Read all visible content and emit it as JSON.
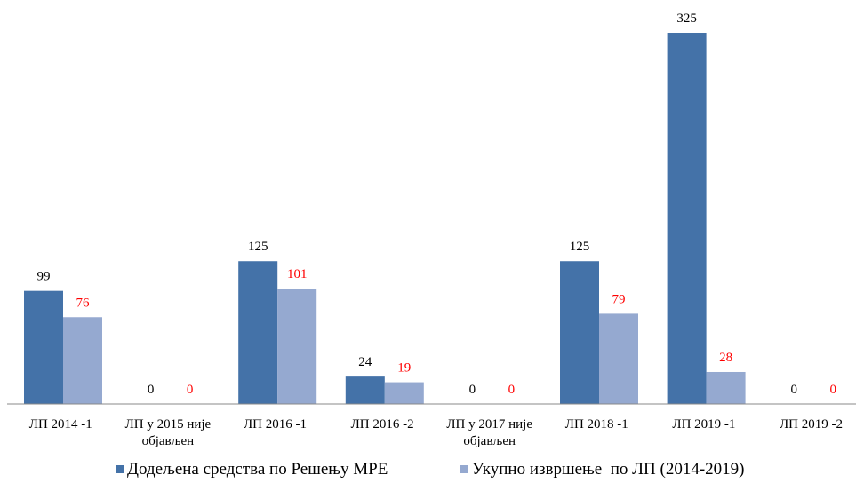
{
  "chart_data": {
    "type": "bar",
    "categories": [
      [
        "ЛП 2014 -1"
      ],
      [
        "ЛП у 2015 није",
        "објављен"
      ],
      [
        "ЛП 2016 -1"
      ],
      [
        "ЛП 2016 -2"
      ],
      [
        "ЛП у 2017 није",
        "објављен"
      ],
      [
        "ЛП 2018 -1"
      ],
      [
        "ЛП 2019 -1"
      ],
      [
        "ЛП 2019 -2"
      ]
    ],
    "series": [
      {
        "name": "Додељена средства по Решењу МРЕ",
        "values": [
          99,
          0,
          125,
          24,
          0,
          125,
          325,
          0
        ],
        "color": "#4472A8",
        "label_color": "#000000"
      },
      {
        "name": "Укупно извршење  по ЛП (2014-2019)",
        "values": [
          76,
          0,
          101,
          19,
          0,
          79,
          28,
          0
        ],
        "color": "#95A9D0",
        "label_color": "#FF0000"
      }
    ],
    "ylim": [
      0,
      325
    ],
    "grid": false,
    "legend_position": "bottom"
  }
}
